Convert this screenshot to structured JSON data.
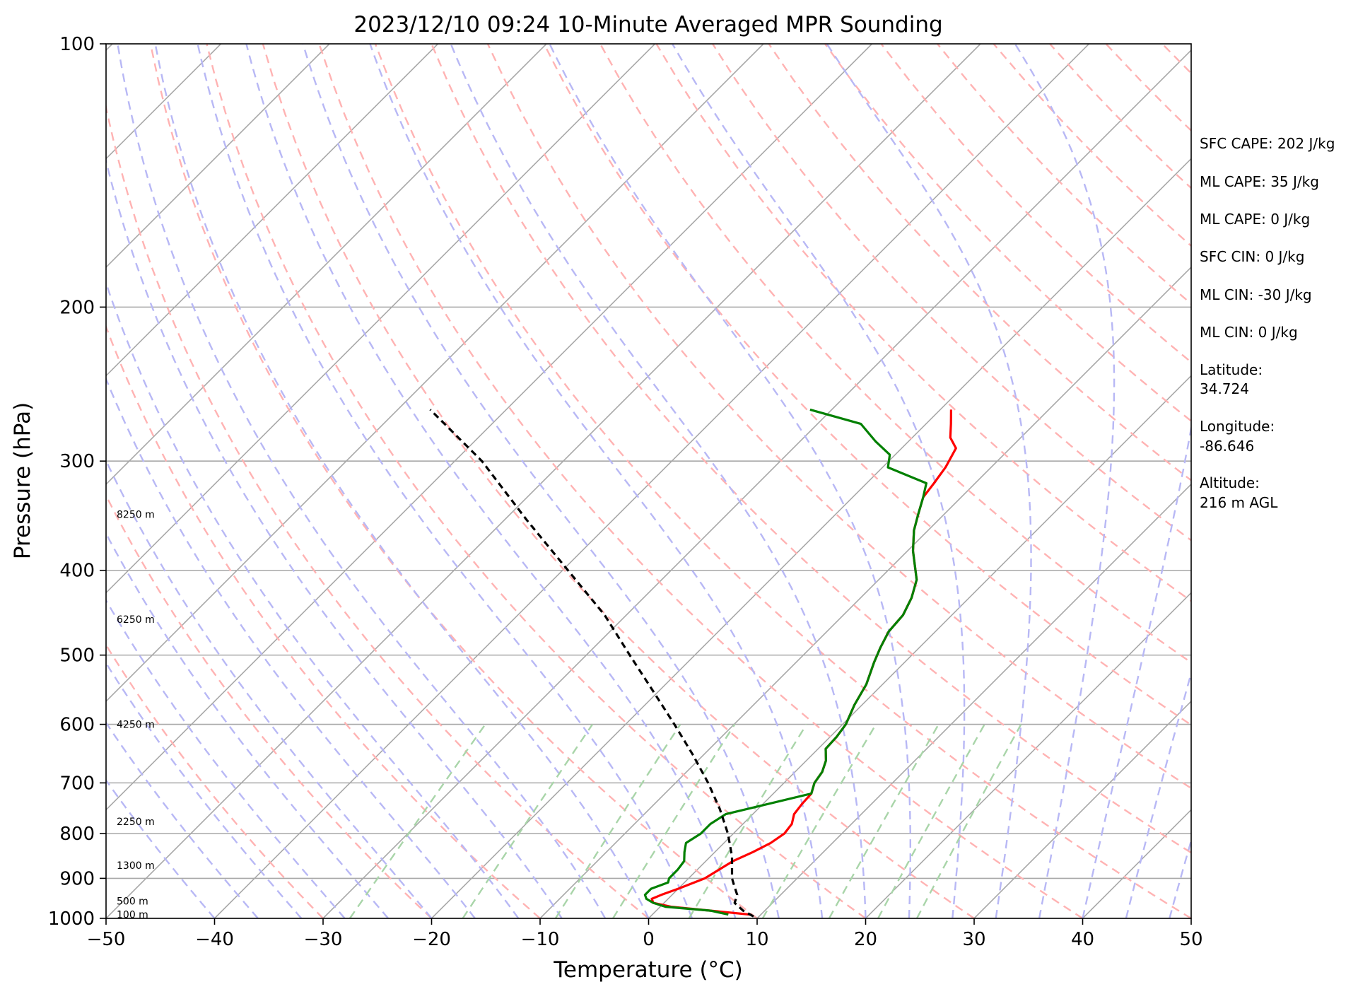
{
  "chart_data": {
    "type": "line",
    "title": "2023/12/10 09:24 10-Minute Averaged MPR Sounding",
    "xlabel": "Temperature (°C)",
    "ylabel": "Pressure (hPa)",
    "xlim": [
      -50,
      50
    ],
    "ylim": [
      1000,
      100
    ],
    "y_scale": "log",
    "x_ticks": [
      "−50",
      "−40",
      "−30",
      "−20",
      "−10",
      "0",
      "10",
      "20",
      "30",
      "40",
      "50"
    ],
    "y_ticks": [
      "100",
      "200",
      "300",
      "400",
      "500",
      "600",
      "700",
      "800",
      "900",
      "1000"
    ],
    "skew": "45°",
    "grid": true,
    "height_labels": [
      "8250 m",
      "6250 m",
      "4250 m",
      "2250 m",
      "1300 m",
      "500 m",
      "100 m"
    ],
    "series": [
      {
        "color": "#ff0000",
        "points": [
          [
            990,
            9.0
          ],
          [
            980,
            5.0
          ],
          [
            970,
            1.0
          ],
          [
            960,
            -1.0
          ],
          [
            950,
            -1.5
          ],
          [
            940,
            -1.0
          ],
          [
            925,
            0.0
          ],
          [
            900,
            1.5
          ],
          [
            880,
            2.0
          ],
          [
            860,
            2.5
          ],
          [
            840,
            3.5
          ],
          [
            820,
            4.3
          ],
          [
            800,
            4.7
          ],
          [
            780,
            4.5
          ],
          [
            760,
            3.8
          ],
          [
            740,
            3.6
          ],
          [
            720,
            3.5
          ],
          [
            700,
            2.8
          ],
          [
            680,
            2.5
          ],
          [
            660,
            1.8
          ],
          [
            640,
            0.7
          ],
          [
            620,
            0.6
          ],
          [
            600,
            0.3
          ],
          [
            570,
            -0.7
          ],
          [
            540,
            -1.5
          ],
          [
            510,
            -2.8
          ],
          [
            490,
            -3.6
          ],
          [
            470,
            -4.3
          ],
          [
            450,
            -4.5
          ],
          [
            430,
            -5.3
          ],
          [
            410,
            -6.5
          ],
          [
            380,
            -9.5
          ],
          [
            360,
            -11.3
          ],
          [
            345,
            -12.4
          ],
          [
            330,
            -13.5
          ],
          [
            318,
            -13.8
          ],
          [
            305,
            -14.2
          ],
          [
            290,
            -15.0
          ],
          [
            282,
            -16.5
          ],
          [
            272,
            -17.7
          ],
          [
            262,
            -19.0
          ]
        ]
      },
      {
        "color": "#008000",
        "points": [
          [
            990,
            7.0
          ],
          [
            980,
            5.0
          ],
          [
            970,
            0.5
          ],
          [
            960,
            -1.0
          ],
          [
            950,
            -2.0
          ],
          [
            940,
            -2.5
          ],
          [
            925,
            -2.5
          ],
          [
            910,
            -1.5
          ],
          [
            900,
            -1.8
          ],
          [
            880,
            -1.8
          ],
          [
            860,
            -2.0
          ],
          [
            840,
            -2.8
          ],
          [
            820,
            -3.5
          ],
          [
            800,
            -3.0
          ],
          [
            780,
            -3.0
          ],
          [
            760,
            -2.5
          ],
          [
            720,
            3.5
          ],
          [
            700,
            2.8
          ],
          [
            680,
            2.5
          ],
          [
            660,
            1.8
          ],
          [
            640,
            0.7
          ],
          [
            620,
            0.6
          ],
          [
            600,
            0.3
          ],
          [
            570,
            -0.7
          ],
          [
            540,
            -1.5
          ],
          [
            510,
            -2.8
          ],
          [
            490,
            -3.6
          ],
          [
            470,
            -4.3
          ],
          [
            450,
            -4.5
          ],
          [
            430,
            -5.3
          ],
          [
            410,
            -6.5
          ],
          [
            380,
            -9.5
          ],
          [
            360,
            -11.3
          ],
          [
            345,
            -12.4
          ],
          [
            330,
            -13.5
          ],
          [
            318,
            -14.5
          ],
          [
            305,
            -19.5
          ],
          [
            295,
            -20.5
          ],
          [
            285,
            -23.0
          ],
          [
            272,
            -26.0
          ],
          [
            262,
            -32.0
          ]
        ]
      },
      {
        "color": "#000000",
        "style": "dashed",
        "points": [
          [
            995,
            9.5
          ],
          [
            980,
            8.0
          ],
          [
            960,
            6.5
          ],
          [
            940,
            6.0
          ],
          [
            920,
            5.0
          ],
          [
            900,
            4.0
          ],
          [
            850,
            2.0
          ],
          [
            800,
            -0.5
          ],
          [
            750,
            -3.5
          ],
          [
            700,
            -7.0
          ],
          [
            650,
            -11.0
          ],
          [
            600,
            -15.5
          ],
          [
            550,
            -20.5
          ],
          [
            500,
            -26.0
          ],
          [
            450,
            -32.0
          ],
          [
            400,
            -39.5
          ],
          [
            350,
            -48.0
          ],
          [
            300,
            -57.5
          ],
          [
            262,
            -67.0
          ]
        ]
      }
    ]
  },
  "info_panel": [
    "SFC CAPE: 202 J/kg",
    "ML CAPE: 35 J/kg",
    "ML CAPE: 0 J/kg",
    "SFC CIN: 0 J/kg",
    "ML CIN: -30 J/kg",
    "ML CIN: 0 J/kg",
    "Latitude:",
    "34.724",
    "Longitude:",
    "-86.646",
    "Altitude:",
    "216 m AGL"
  ],
  "colors": {
    "temperature": "#ff0000",
    "dewpoint": "#008000",
    "parcel": "#000000",
    "isotherm": "#a8a8a8",
    "dry_adiabat": "#ffb3b3",
    "moist_adiabat": "#b8b8f5",
    "mixing_ratio": "#a9d5a9"
  }
}
